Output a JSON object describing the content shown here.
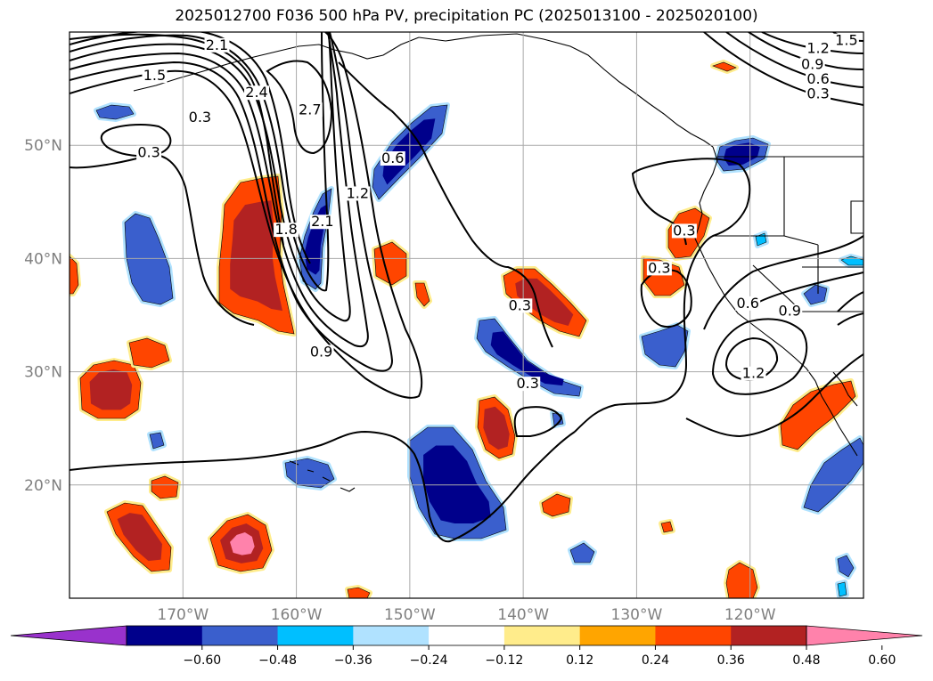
{
  "title": "2025012700 F036 500 hPa PV, precipitation PC (2025013100 - 2025020100)",
  "map": {
    "lon_range": [
      -180,
      -110
    ],
    "lat_range": [
      10,
      60
    ],
    "lon_ticks": [
      {
        "value": -170,
        "label": "170°W"
      },
      {
        "value": -160,
        "label": "160°W"
      },
      {
        "value": -150,
        "label": "150°W"
      },
      {
        "value": -140,
        "label": "140°W"
      },
      {
        "value": -130,
        "label": "130°W"
      },
      {
        "value": -120,
        "label": "120°W"
      }
    ],
    "lat_ticks": [
      {
        "value": 20,
        "label": "20°N"
      },
      {
        "value": 30,
        "label": "30°N"
      },
      {
        "value": 40,
        "label": "40°N"
      },
      {
        "value": 50,
        "label": "50°N"
      }
    ],
    "grid": true,
    "contour_labels": [
      {
        "text": "2.1",
        "lon": -167,
        "lat": 58.6
      },
      {
        "text": "1.5",
        "lon": -172.5,
        "lat": 55.9
      },
      {
        "text": "0.3",
        "lon": -168.5,
        "lat": 52.2
      },
      {
        "text": "0.3",
        "lon": -173.0,
        "lat": 49.1
      },
      {
        "text": "2.4",
        "lon": -163.5,
        "lat": 54.4
      },
      {
        "text": "2.7",
        "lon": -158.8,
        "lat": 52.9
      },
      {
        "text": "1.8",
        "lon": -160.9,
        "lat": 42.3
      },
      {
        "text": "2.1",
        "lon": -157.7,
        "lat": 43.0
      },
      {
        "text": "1.2",
        "lon": -154.6,
        "lat": 45.5
      },
      {
        "text": "0.6",
        "lon": -151.5,
        "lat": 48.6
      },
      {
        "text": "0.9",
        "lon": -157.8,
        "lat": 31.5
      },
      {
        "text": "0.3",
        "lon": -140.3,
        "lat": 35.6
      },
      {
        "text": "0.3",
        "lon": -139.6,
        "lat": 28.7
      },
      {
        "text": "0.3",
        "lon": -125.8,
        "lat": 42.2
      },
      {
        "text": "0.3",
        "lon": -128.0,
        "lat": 38.9
      },
      {
        "text": "0.6",
        "lon": -120.2,
        "lat": 35.8
      },
      {
        "text": "0.9",
        "lon": -116.5,
        "lat": 35.1
      },
      {
        "text": "1.2",
        "lon": -119.7,
        "lat": 29.6
      },
      {
        "text": "1.5",
        "lon": -111.5,
        "lat": 59.0
      },
      {
        "text": "1.2",
        "lon": -114.0,
        "lat": 58.3
      },
      {
        "text": "0.9",
        "lon": -114.5,
        "lat": 56.9
      },
      {
        "text": "0.6",
        "lon": -114.0,
        "lat": 55.6
      },
      {
        "text": "0.3",
        "lon": -114.0,
        "lat": 54.3
      }
    ]
  },
  "colorbar": {
    "colors": [
      "#9932cc",
      "#00008b",
      "#3a5fcd",
      "#00bfff",
      "#b0e2ff",
      "#ffffff",
      "#ffec8b",
      "#ffa500",
      "#ff4500",
      "#b22222",
      "#ff82ab"
    ],
    "tick_values": [
      -0.6,
      -0.48,
      -0.36,
      -0.24,
      -0.12,
      0.12,
      0.24,
      0.36,
      0.48,
      0.6
    ],
    "tick_labels": [
      "−0.60",
      "−0.48",
      "−0.36",
      "−0.24",
      "−0.12",
      "0.12",
      "0.24",
      "0.36",
      "0.48",
      "0.60"
    ]
  }
}
